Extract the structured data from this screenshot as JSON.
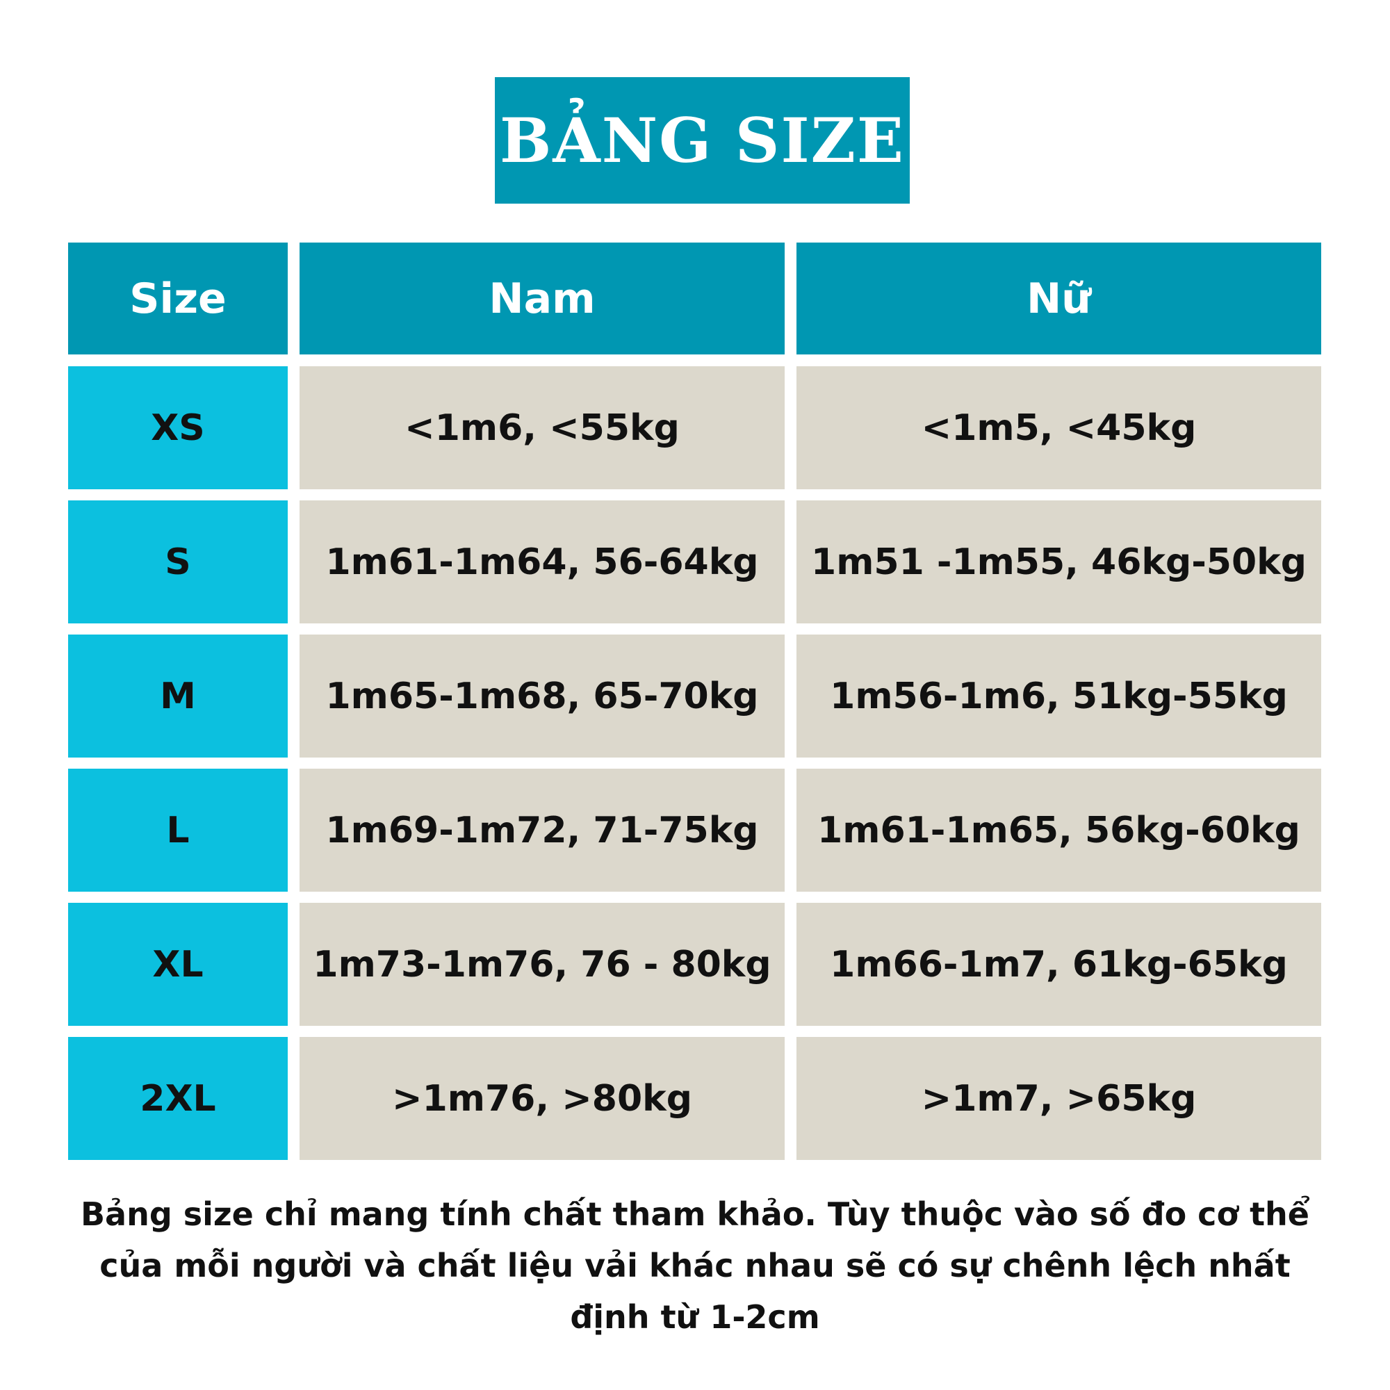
{
  "title": "BẢNG SIZE",
  "table": {
    "headers": [
      "Size",
      "Nam",
      "Nữ"
    ],
    "rows": [
      [
        "XS",
        "<1m6, <55kg",
        "<1m5, <45kg"
      ],
      [
        "S",
        "1m61-1m64, 56-64kg",
        "1m51 -1m55, 46kg-50kg"
      ],
      [
        "M",
        "1m65-1m68, 65-70kg",
        "1m56-1m6, 51kg-55kg"
      ],
      [
        "L",
        "1m69-1m72, 71-75kg",
        "1m61-1m65, 56kg-60kg"
      ],
      [
        "XL",
        "1m73-1m76, 76 - 80kg",
        "1m66-1m7, 61kg-65kg"
      ],
      [
        "2XL",
        ">1m76, >80kg",
        ">1m7, >65kg"
      ]
    ]
  },
  "note": "Bảng size chỉ mang tính chất tham khảo. Tùy thuộc vào số đo cơ thể của mỗi người và chất liệu vải khác nhau sẽ có sự chênh lệch nhất định từ 1-2cm",
  "colors": {
    "header": "#0097b2",
    "size_column": "#0cc0df",
    "cell": "#dcd8cc"
  }
}
